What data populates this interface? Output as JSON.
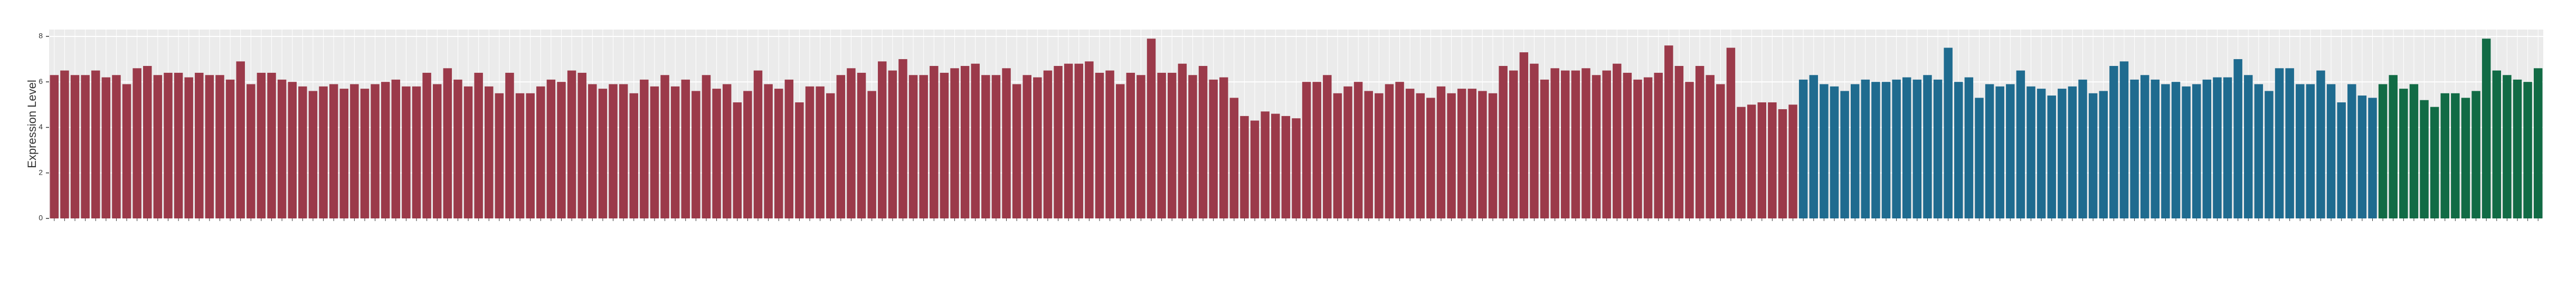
{
  "chart_data": {
    "type": "bar",
    "ylabel": "Expression Level",
    "categories": [
      null,
      null,
      null,
      null,
      null,
      null,
      null,
      null,
      null,
      null,
      null,
      null,
      null,
      null,
      null,
      null,
      null,
      null,
      null,
      null,
      null,
      null,
      null,
      null,
      null,
      null,
      null,
      null,
      null,
      null,
      null,
      null,
      null,
      null,
      null,
      null,
      null,
      null,
      null,
      null,
      null,
      null,
      null,
      null,
      null,
      null,
      null,
      null,
      null,
      null,
      null,
      null,
      null,
      null,
      null,
      null,
      null,
      null,
      null,
      null,
      null,
      null,
      null,
      null,
      null,
      null,
      null,
      null,
      null,
      null,
      null,
      null,
      null,
      null,
      null,
      null,
      null,
      null,
      null,
      null,
      null,
      null,
      null,
      null,
      null,
      null,
      null,
      null,
      null,
      null,
      null,
      null,
      null,
      null,
      null,
      null,
      null,
      null,
      null,
      null,
      null,
      null,
      null,
      null,
      null,
      null,
      null,
      null,
      null,
      null,
      null,
      null,
      null,
      null,
      null,
      null,
      null,
      null,
      null,
      null,
      null,
      null,
      null,
      null,
      null,
      null,
      null,
      null,
      null,
      null,
      null,
      null,
      null,
      null,
      null,
      null,
      null,
      null,
      null,
      null,
      null,
      null,
      null,
      null,
      null,
      null,
      null,
      null,
      null,
      null,
      null,
      null,
      null,
      null,
      null,
      null,
      null,
      null,
      null,
      null,
      null,
      null,
      null,
      null,
      null,
      null,
      null,
      null,
      null,
      null,
      null,
      null,
      null,
      null,
      null,
      null,
      null,
      null,
      null,
      null,
      null,
      null,
      null,
      null,
      null,
      null,
      null,
      null,
      null,
      null,
      null,
      null,
      null,
      null,
      null,
      null,
      null,
      null,
      null,
      null,
      null,
      null,
      null,
      null,
      null,
      null,
      null,
      null,
      null,
      null,
      null,
      null,
      null,
      null,
      null,
      null,
      null,
      null,
      null,
      null,
      null,
      null,
      null,
      null,
      null,
      null,
      null,
      null,
      null,
      null,
      null,
      null,
      null,
      null,
      null,
      null,
      null,
      null,
      null,
      null,
      null
    ],
    "values": [
      6.3,
      6.5,
      6.3,
      6.3,
      6.5,
      6.2,
      6.3,
      5.9,
      6.6,
      6.7,
      6.3,
      6.4,
      6.4,
      6.2,
      6.4,
      6.3,
      6.3,
      6.1,
      6.9,
      5.9,
      6.4,
      6.4,
      6.1,
      6.0,
      5.8,
      5.6,
      5.8,
      5.9,
      5.7,
      5.9,
      5.7,
      5.9,
      6.0,
      6.1,
      5.8,
      5.8,
      6.4,
      5.9,
      6.6,
      6.1,
      5.8,
      6.4,
      5.8,
      5.5,
      6.4,
      5.5,
      5.5,
      5.8,
      6.1,
      6.0,
      6.5,
      6.4,
      5.9,
      5.7,
      5.9,
      5.9,
      5.5,
      6.1,
      5.8,
      6.3,
      5.8,
      6.1,
      5.6,
      6.3,
      5.7,
      5.9,
      5.1,
      5.6,
      6.5,
      5.9,
      5.7,
      6.1,
      5.1,
      5.8,
      5.8,
      5.5,
      6.3,
      6.6,
      6.4,
      5.6,
      6.9,
      6.5,
      7.0,
      6.3,
      6.3,
      6.7,
      6.4,
      6.6,
      6.7,
      6.8,
      6.3,
      6.3,
      6.6,
      5.9,
      6.3,
      6.2,
      6.5,
      6.7,
      6.8,
      6.8,
      6.9,
      6.4,
      6.5,
      5.9,
      6.4,
      6.3,
      7.9,
      6.4,
      6.4,
      6.8,
      6.3,
      6.7,
      6.1,
      6.2,
      5.3,
      4.5,
      4.3,
      4.7,
      4.6,
      4.5,
      4.4,
      6.0,
      6.0,
      6.3,
      5.5,
      5.8,
      6.0,
      5.6,
      5.5,
      5.9,
      6.0,
      5.7,
      5.5,
      5.3,
      5.8,
      5.5,
      5.7,
      5.7,
      5.6,
      5.5,
      6.7,
      6.5,
      7.3,
      6.8,
      6.1,
      6.6,
      6.5,
      6.5,
      6.6,
      6.3,
      6.5,
      6.8,
      6.4,
      6.1,
      6.2,
      6.4,
      7.6,
      6.7,
      6.0,
      6.7,
      6.3,
      5.9,
      7.5,
      4.9,
      5.0,
      5.1,
      5.1,
      4.8,
      5.0,
      6.1,
      6.3,
      5.9,
      5.8,
      5.6,
      5.9,
      6.1,
      6.0,
      6.0,
      6.1,
      6.2,
      6.1,
      6.3,
      6.1,
      7.5,
      6.0,
      6.2,
      5.3,
      5.9,
      5.8,
      5.9,
      6.5,
      5.8,
      5.7,
      5.4,
      5.7,
      5.8,
      6.1,
      5.5,
      5.6,
      6.7,
      6.9,
      6.1,
      6.3,
      6.1,
      5.9,
      6.0,
      5.8,
      5.9,
      6.1,
      6.2,
      6.2,
      7.0,
      6.3,
      5.9,
      5.6,
      6.6,
      6.6,
      5.9,
      5.9,
      6.5,
      5.9,
      5.1,
      5.9,
      5.4,
      5.3,
      5.9,
      6.3,
      5.7,
      5.9,
      5.2,
      4.9,
      5.5,
      5.5,
      5.3,
      5.6,
      7.9,
      6.5,
      6.3,
      6.1,
      6.0,
      6.6
    ],
    "colors": [
      "#9b3a4a",
      "#9b3a4a",
      "#9b3a4a",
      "#9b3a4a",
      "#9b3a4a",
      "#9b3a4a",
      "#9b3a4a",
      "#9b3a4a",
      "#9b3a4a",
      "#9b3a4a",
      "#9b3a4a",
      "#9b3a4a",
      "#9b3a4a",
      "#9b3a4a",
      "#9b3a4a",
      "#9b3a4a",
      "#9b3a4a",
      "#9b3a4a",
      "#9b3a4a",
      "#9b3a4a",
      "#9b3a4a",
      "#9b3a4a",
      "#9b3a4a",
      "#9b3a4a",
      "#9b3a4a",
      "#9b3a4a",
      "#9b3a4a",
      "#9b3a4a",
      "#9b3a4a",
      "#9b3a4a",
      "#9b3a4a",
      "#9b3a4a",
      "#9b3a4a",
      "#9b3a4a",
      "#9b3a4a",
      "#9b3a4a",
      "#9b3a4a",
      "#9b3a4a",
      "#9b3a4a",
      "#9b3a4a",
      "#9b3a4a",
      "#9b3a4a",
      "#9b3a4a",
      "#9b3a4a",
      "#9b3a4a",
      "#9b3a4a",
      "#9b3a4a",
      "#9b3a4a",
      "#9b3a4a",
      "#9b3a4a",
      "#9b3a4a",
      "#9b3a4a",
      "#9b3a4a",
      "#9b3a4a",
      "#9b3a4a",
      "#9b3a4a",
      "#9b3a4a",
      "#9b3a4a",
      "#9b3a4a",
      "#9b3a4a",
      "#9b3a4a",
      "#9b3a4a",
      "#9b3a4a",
      "#9b3a4a",
      "#9b3a4a",
      "#9b3a4a",
      "#9b3a4a",
      "#9b3a4a",
      "#9b3a4a",
      "#9b3a4a",
      "#9b3a4a",
      "#9b3a4a",
      "#9b3a4a",
      "#9b3a4a",
      "#9b3a4a",
      "#9b3a4a",
      "#9b3a4a",
      "#9b3a4a",
      "#9b3a4a",
      "#9b3a4a",
      "#9b3a4a",
      "#9b3a4a",
      "#9b3a4a",
      "#9b3a4a",
      "#9b3a4a",
      "#9b3a4a",
      "#9b3a4a",
      "#9b3a4a",
      "#9b3a4a",
      "#9b3a4a",
      "#9b3a4a",
      "#9b3a4a",
      "#9b3a4a",
      "#9b3a4a",
      "#9b3a4a",
      "#9b3a4a",
      "#9b3a4a",
      "#9b3a4a",
      "#9b3a4a",
      "#9b3a4a",
      "#9b3a4a",
      "#9b3a4a",
      "#9b3a4a",
      "#9b3a4a",
      "#9b3a4a",
      "#9b3a4a",
      "#9b3a4a",
      "#9b3a4a",
      "#9b3a4a",
      "#9b3a4a",
      "#9b3a4a",
      "#9b3a4a",
      "#9b3a4a",
      "#9b3a4a",
      "#9b3a4a",
      "#9b3a4a",
      "#9b3a4a",
      "#9b3a4a",
      "#9b3a4a",
      "#9b3a4a",
      "#9b3a4a",
      "#9b3a4a",
      "#9b3a4a",
      "#9b3a4a",
      "#9b3a4a",
      "#9b3a4a",
      "#9b3a4a",
      "#9b3a4a",
      "#9b3a4a",
      "#9b3a4a",
      "#9b3a4a",
      "#9b3a4a",
      "#9b3a4a",
      "#9b3a4a",
      "#9b3a4a",
      "#9b3a4a",
      "#9b3a4a",
      "#9b3a4a",
      "#9b3a4a",
      "#9b3a4a",
      "#9b3a4a",
      "#9b3a4a",
      "#9b3a4a",
      "#9b3a4a",
      "#9b3a4a",
      "#9b3a4a",
      "#9b3a4a",
      "#9b3a4a",
      "#9b3a4a",
      "#9b3a4a",
      "#9b3a4a",
      "#9b3a4a",
      "#9b3a4a",
      "#9b3a4a",
      "#9b3a4a",
      "#9b3a4a",
      "#9b3a4a",
      "#9b3a4a",
      "#9b3a4a",
      "#9b3a4a",
      "#9b3a4a",
      "#9b3a4a",
      "#9b3a4a",
      "#9b3a4a",
      "#9b3a4a",
      "#9b3a4a",
      "#9b3a4a",
      "#9b3a4a",
      "#9b3a4a",
      "#1f6b8f",
      "#1f6b8f",
      "#1f6b8f",
      "#1f6b8f",
      "#1f6b8f",
      "#1f6b8f",
      "#1f6b8f",
      "#1f6b8f",
      "#1f6b8f",
      "#1f6b8f",
      "#1f6b8f",
      "#1f6b8f",
      "#1f6b8f",
      "#1f6b8f",
      "#1f6b8f",
      "#1f6b8f",
      "#1f6b8f",
      "#1f6b8f",
      "#1f6b8f",
      "#1f6b8f",
      "#1f6b8f",
      "#1f6b8f",
      "#1f6b8f",
      "#1f6b8f",
      "#1f6b8f",
      "#1f6b8f",
      "#1f6b8f",
      "#1f6b8f",
      "#1f6b8f",
      "#1f6b8f",
      "#1f6b8f",
      "#1f6b8f",
      "#1f6b8f",
      "#1f6b8f",
      "#1f6b8f",
      "#1f6b8f",
      "#1f6b8f",
      "#1f6b8f",
      "#1f6b8f",
      "#1f6b8f",
      "#1f6b8f",
      "#1f6b8f",
      "#1f6b8f",
      "#1f6b8f",
      "#1f6b8f",
      "#1f6b8f",
      "#1f6b8f",
      "#1f6b8f",
      "#1f6b8f",
      "#1f6b8f",
      "#1f6b8f",
      "#1f6b8f",
      "#1f6b8f",
      "#1f6b8f",
      "#1f6b8f",
      "#1f6b8f",
      "#116b45",
      "#116b45",
      "#116b45",
      "#116b45",
      "#116b45",
      "#116b45",
      "#116b45",
      "#116b45",
      "#116b45",
      "#116b45",
      "#116b45",
      "#116b45",
      "#116b45",
      "#116b45",
      "#116b45",
      "#116b45"
    ],
    "ylim": [
      0,
      8.3
    ],
    "yticks": [
      0,
      2,
      4,
      6,
      8
    ],
    "grid": true,
    "background": "#ebebeb"
  }
}
